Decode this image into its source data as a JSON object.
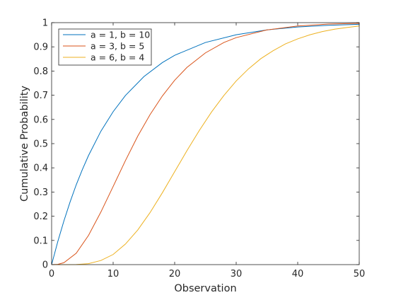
{
  "chart_data": {
    "type": "line",
    "title": "",
    "xlabel": "Observation",
    "ylabel": "Cumulative Probability",
    "xlim": [
      0,
      50
    ],
    "ylim": [
      0,
      1
    ],
    "x_ticks": [
      0,
      10,
      20,
      30,
      40,
      50
    ],
    "y_ticks": [
      0,
      0.1,
      0.2,
      0.3,
      0.4,
      0.5,
      0.6,
      0.7,
      0.8,
      0.9,
      1
    ],
    "grid": false,
    "legend_position": "top-left",
    "series": [
      {
        "name": "a = 1, b = 10",
        "color": "#0072BD",
        "x": [
          0,
          1,
          2,
          3,
          4,
          5,
          6,
          8,
          10,
          12,
          15,
          18,
          20,
          25,
          30,
          35,
          40,
          45,
          50
        ],
        "y": [
          0,
          0.095,
          0.181,
          0.259,
          0.33,
          0.393,
          0.451,
          0.551,
          0.632,
          0.699,
          0.777,
          0.835,
          0.865,
          0.918,
          0.95,
          0.97,
          0.982,
          0.989,
          0.993
        ]
      },
      {
        "name": "a = 3, b = 5",
        "color": "#D95319",
        "x": [
          0,
          1,
          2,
          4,
          6,
          8,
          10,
          12,
          14,
          16,
          18,
          20,
          22,
          25,
          28,
          30,
          35,
          40,
          45,
          50
        ],
        "y": [
          0,
          0.001,
          0.008,
          0.047,
          0.121,
          0.217,
          0.323,
          0.43,
          0.531,
          0.62,
          0.697,
          0.762,
          0.815,
          0.875,
          0.918,
          0.938,
          0.97,
          0.986,
          0.994,
          0.997
        ]
      },
      {
        "name": "a = 6, b = 4",
        "color": "#EDB120",
        "x": [
          0,
          4,
          6,
          8,
          10,
          12,
          14,
          16,
          18,
          20,
          22,
          24,
          26,
          28,
          30,
          32,
          34,
          36,
          38,
          40,
          42,
          44,
          46,
          48,
          50
        ],
        "y": [
          0,
          0.0002,
          0.004,
          0.017,
          0.042,
          0.085,
          0.143,
          0.215,
          0.297,
          0.384,
          0.471,
          0.554,
          0.631,
          0.699,
          0.759,
          0.809,
          0.851,
          0.884,
          0.912,
          0.933,
          0.95,
          0.963,
          0.973,
          0.98,
          0.986
        ]
      }
    ]
  }
}
